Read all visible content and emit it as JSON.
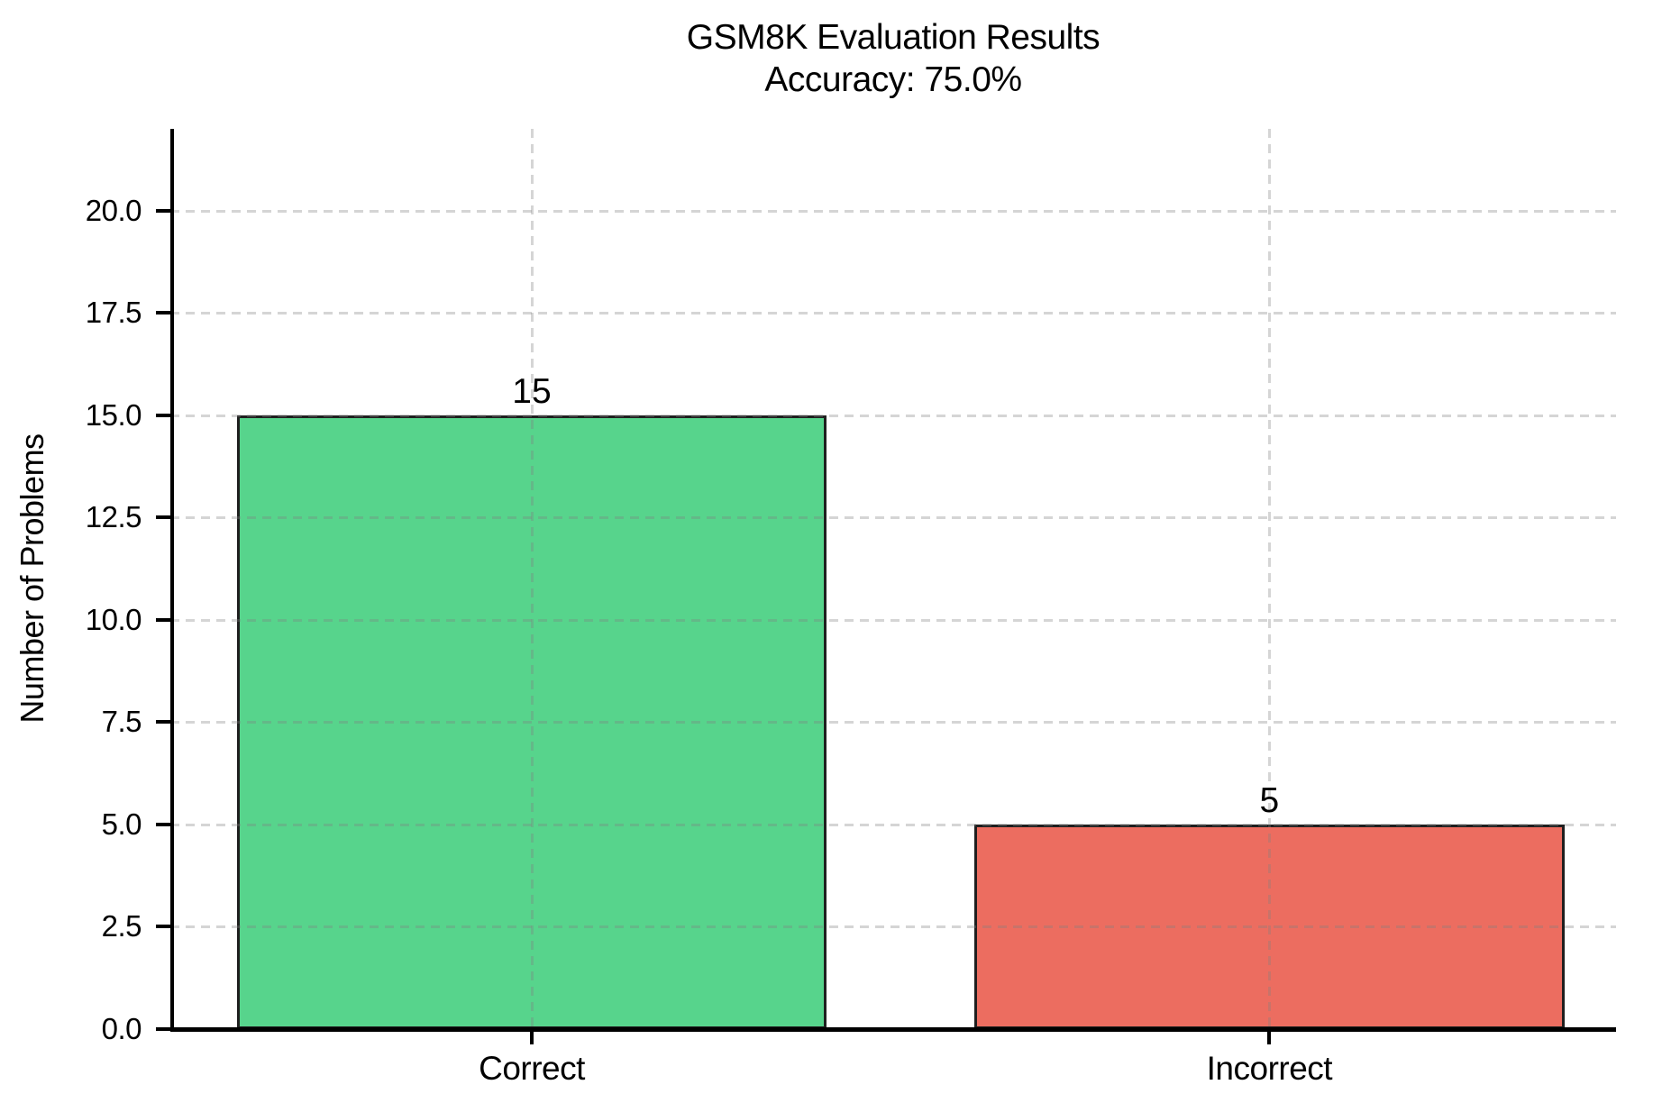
{
  "chart_data": {
    "type": "bar",
    "title": "GSM8K Evaluation Results",
    "subtitle": "Accuracy: 75.0%",
    "accuracy_percent": 75.0,
    "categories": [
      "Correct",
      "Incorrect"
    ],
    "values": [
      15,
      5
    ],
    "bar_value_labels": [
      "15",
      "5"
    ],
    "bar_colors": [
      "#57d48c",
      "#ec6d60"
    ],
    "bar_edge_color": "#1f1f1f",
    "ylabel": "Number of Problems",
    "xlabel": "",
    "yticks": [
      0,
      2.5,
      5,
      7.5,
      10,
      12.5,
      15,
      17.5,
      20
    ],
    "ytick_format_decimals": 1,
    "ylim": [
      0,
      22
    ],
    "xlim": [
      -0.49,
      1.47
    ],
    "bar_width_units": 0.8,
    "grid": true,
    "grid_style": "dashed",
    "grid_color_rgba": "rgba(128,128,128,0.33)",
    "axis_color": "#000000",
    "legend": "none"
  }
}
